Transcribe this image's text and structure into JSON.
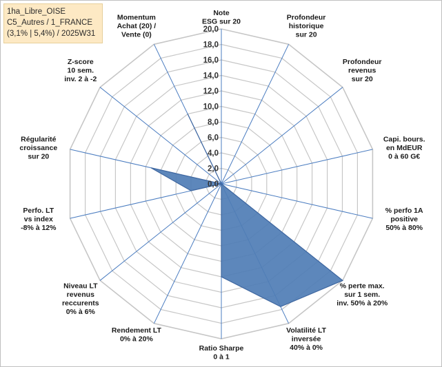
{
  "info_box": {
    "line1": "1ha_Libre_OISE",
    "line2": "C5_Autres / 1_FRANCE",
    "line3": "(3,1% | 5,4%) / 2025W31"
  },
  "colors": {
    "fill": "#4f7db5",
    "stroke": "#3f67a0",
    "grid": "#c6c6c6",
    "spoke": "#4a7cc0"
  },
  "chart_data": {
    "type": "radar",
    "rmax": 20,
    "ticks": [
      "0,0",
      "2,0",
      "4,0",
      "6,0",
      "8,0",
      "10,0",
      "12,0",
      "14,0",
      "16,0",
      "18,0",
      "20,0"
    ],
    "axes": [
      {
        "label": [
          "Note",
          "ESG sur 20"
        ],
        "value": 0
      },
      {
        "label": [
          "Profondeur",
          "historique",
          "sur 20"
        ],
        "value": 0
      },
      {
        "label": [
          "Profondeur",
          "revenus",
          "sur 20"
        ],
        "value": 0
      },
      {
        "label": [
          "Capi. bours.",
          "en MdEUR",
          "0 à 60 G€"
        ],
        "value": 0
      },
      {
        "label": [
          "% perfo 1A",
          "positive",
          "50% à 80%"
        ],
        "value": 0
      },
      {
        "label": [
          "% perte max.",
          "sur 1 sem.",
          "inv. 50% à 20%"
        ],
        "value": 20
      },
      {
        "label": [
          "Volatilité LT",
          "inversée",
          "40% à 0%"
        ],
        "value": 17.6
      },
      {
        "label": [
          "Ratio Sharpe",
          "0 à 1"
        ],
        "value": 12
      },
      {
        "label": [
          "Rendement LT",
          "0% à 20%"
        ],
        "value": 0
      },
      {
        "label": [
          "Niveau LT",
          "revenus",
          "reccurents",
          "0% à 6%"
        ],
        "value": 0
      },
      {
        "label": [
          "Perfo. LT",
          "vs index",
          "-8% à 12%"
        ],
        "value": 4
      },
      {
        "label": [
          "Régularité",
          "croissance",
          "sur 20"
        ],
        "value": 9.3
      },
      {
        "label": [
          "Z-score",
          "10 sem.",
          "inv. 2 à -2"
        ],
        "value": 0
      },
      {
        "label": [
          "Momentum",
          "Achat (20) /",
          "Vente (0)"
        ],
        "value": 10
      }
    ]
  }
}
